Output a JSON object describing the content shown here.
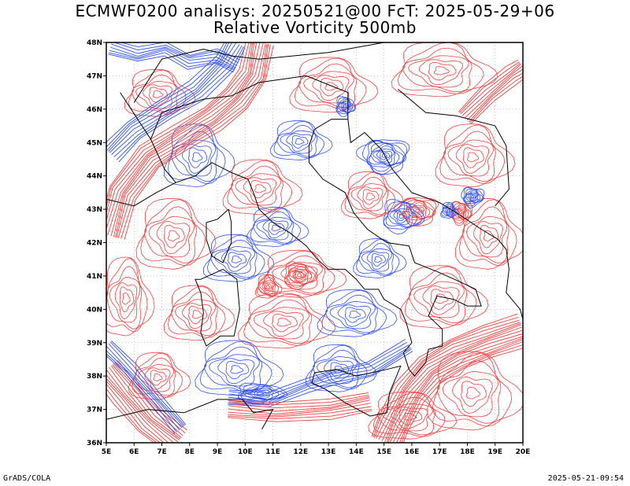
{
  "header": {
    "title_line1": "ECMWF0200 analisys: 20250521@00 FcT: 2025-05-29+06",
    "title_line2": "Relative Vorticity 500mb"
  },
  "footer": {
    "left": "GrADS/COLA",
    "right": "2025-05-21-09:54"
  },
  "map": {
    "lon_ticks": [
      "5E",
      "6E",
      "7E",
      "8E",
      "9E",
      "10E",
      "11E",
      "12E",
      "13E",
      "14E",
      "15E",
      "16E",
      "17E",
      "18E",
      "19E",
      "20E"
    ],
    "lat_ticks": [
      "36N",
      "37N",
      "38N",
      "39N",
      "40N",
      "41N",
      "42N",
      "43N",
      "44N",
      "45N",
      "46N",
      "47N",
      "48N"
    ],
    "lon_range": [
      5,
      20
    ],
    "lat_range": [
      36,
      48
    ],
    "colors": {
      "positive_vorticity": "#f04040",
      "negative_vorticity": "#3050f0",
      "coastline": "#000000",
      "grid": "#a0a0a0"
    }
  }
}
